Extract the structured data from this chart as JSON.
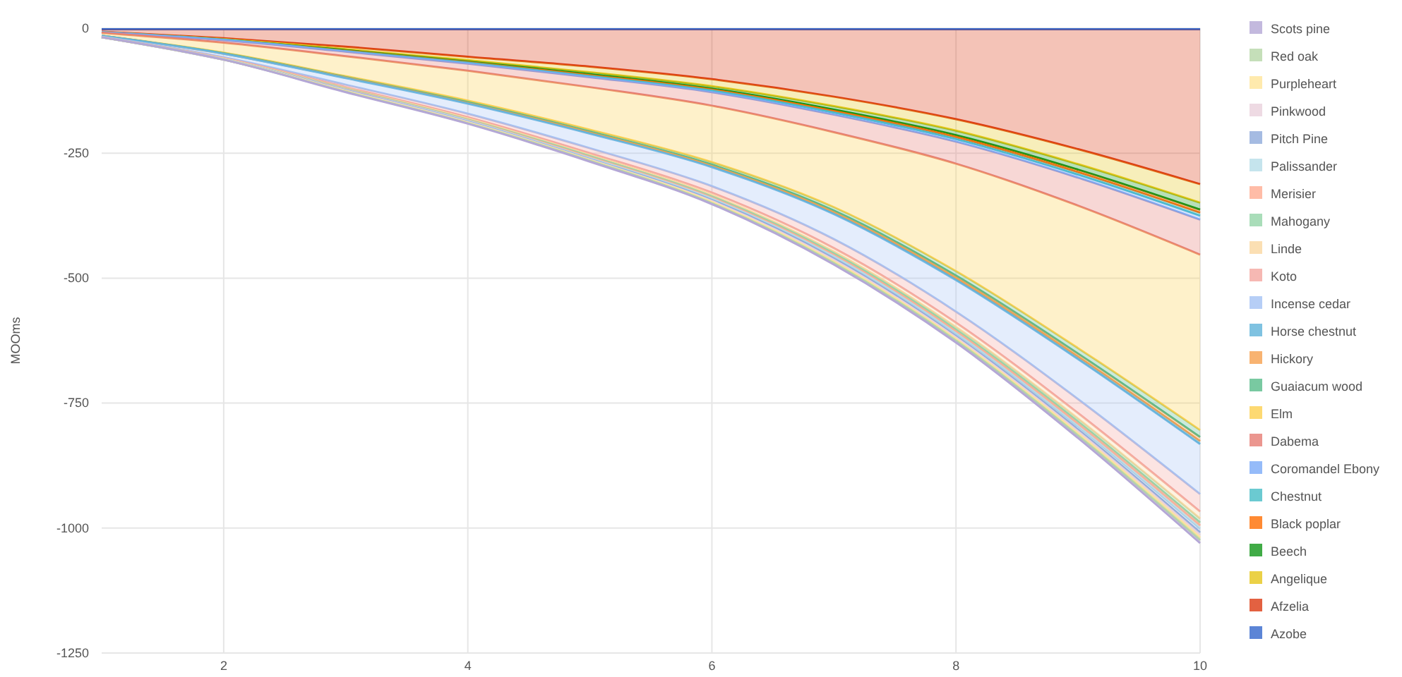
{
  "chart_data": {
    "type": "area",
    "stacked": true,
    "ylabel": "MOOms",
    "x": [
      1,
      2,
      3,
      4,
      5,
      6,
      7,
      8,
      9,
      10
    ],
    "xlim": [
      1,
      10
    ],
    "xticks": [
      2,
      4,
      6,
      8,
      10
    ],
    "ylim": [
      -1250,
      0
    ],
    "yticks": [
      -1250,
      -1000,
      -750,
      -500,
      -250,
      0
    ],
    "grid": true,
    "legend": "right",
    "series": [
      {
        "name": "Azobe",
        "color": "#3366cc",
        "values": [
          -2,
          -2,
          -2,
          -2,
          -2,
          -2,
          -2,
          -2,
          -2,
          -2
        ]
      },
      {
        "name": "Afzelia",
        "color": "#dc3912",
        "values": [
          -5,
          -18,
          -35,
          -55,
          -75,
          -100,
          -135,
          -180,
          -240,
          -310
        ]
      },
      {
        "name": "Angelique",
        "color": "#e6c619",
        "values": [
          -1,
          -2,
          -5,
          -7,
          -11,
          -14,
          -19,
          -23,
          -30,
          -37
        ]
      },
      {
        "name": "Beech",
        "color": "#109618",
        "values": [
          0,
          -1,
          -2,
          -3,
          -4,
          -5,
          -7,
          -9,
          -11,
          -14
        ]
      },
      {
        "name": "Black poplar",
        "color": "#ff6d00",
        "values": [
          0,
          0,
          -1,
          -1,
          -2,
          -2,
          -3,
          -4,
          -5,
          -6
        ]
      },
      {
        "name": "Chestnut",
        "color": "#46bdc6",
        "values": [
          0,
          0,
          -1,
          -1,
          -2,
          -2,
          -3,
          -4,
          -5,
          -6
        ]
      },
      {
        "name": "Coromandel Ebony",
        "color": "#7baaf7",
        "values": [
          0,
          -1,
          -1,
          -2,
          -2,
          -3,
          -4,
          -5,
          -6,
          -8
        ]
      },
      {
        "name": "Dabema",
        "color": "#e67c73",
        "values": [
          -1,
          -5,
          -9,
          -14,
          -20,
          -27,
          -35,
          -44,
          -56,
          -70
        ]
      },
      {
        "name": "Elm",
        "color": "#fcd04f",
        "values": [
          -6,
          -20,
          -40,
          -60,
          -85,
          -113,
          -150,
          -215,
          -285,
          -351
        ]
      },
      {
        "name": "Guaiacum wood",
        "color": "#57bb8a",
        "values": [
          0,
          -1,
          -2,
          -3,
          -4,
          -5,
          -7,
          -9,
          -11,
          -14
        ]
      },
      {
        "name": "Hickory",
        "color": "#f6a04d",
        "values": [
          0,
          -1,
          -1,
          -2,
          -2,
          -3,
          -4,
          -5,
          -6,
          -8
        ]
      },
      {
        "name": "Horse chestnut",
        "color": "#5fb3d9",
        "values": [
          0,
          0,
          -1,
          -1,
          -2,
          -2,
          -3,
          -4,
          -5,
          -6
        ]
      },
      {
        "name": "Incense cedar",
        "color": "#a4c2f4",
        "values": [
          -2,
          -7,
          -13,
          -20,
          -29,
          -38,
          -50,
          -63,
          -80,
          -100
        ]
      },
      {
        "name": "Koto",
        "color": "#f4a6a0",
        "values": [
          -1,
          -2,
          -5,
          -7,
          -10,
          -13,
          -18,
          -22,
          -28,
          -35
        ]
      },
      {
        "name": "Linde",
        "color": "#fad7a0",
        "values": [
          0,
          -1,
          -2,
          -3,
          -4,
          -5,
          -7,
          -9,
          -11,
          -14
        ]
      },
      {
        "name": "Mahogany",
        "color": "#93d5a8",
        "values": [
          0,
          -1,
          -1,
          -2,
          -2,
          -3,
          -4,
          -5,
          -6,
          -8
        ]
      },
      {
        "name": "Merisier",
        "color": "#ffab91",
        "values": [
          0,
          0,
          -1,
          -1,
          -2,
          -2,
          -3,
          -4,
          -5,
          -6
        ]
      },
      {
        "name": "Palissander",
        "color": "#b6dde8",
        "values": [
          0,
          0,
          -1,
          -1,
          -2,
          -2,
          -3,
          -4,
          -5,
          -6
        ]
      },
      {
        "name": "Pitch Pine",
        "color": "#8eaadb",
        "values": [
          0,
          -1,
          -1,
          -2,
          -2,
          -3,
          -4,
          -5,
          -6,
          -8
        ]
      },
      {
        "name": "Pinkwood",
        "color": "#ead1dc",
        "values": [
          0,
          0,
          -1,
          -1,
          -1,
          -2,
          -3,
          -3,
          -4,
          -5
        ]
      },
      {
        "name": "Purpleheart",
        "color": "#ffe599",
        "values": [
          0,
          0,
          -1,
          -1,
          -1,
          -2,
          -3,
          -3,
          -4,
          -5
        ]
      },
      {
        "name": "Red oak",
        "color": "#b6d7a8",
        "values": [
          0,
          0,
          -1,
          -1,
          -1,
          -2,
          -3,
          -3,
          -4,
          -5
        ]
      },
      {
        "name": "Scots pine",
        "color": "#b4a7d6",
        "values": [
          0,
          0,
          -1,
          -1,
          -2,
          -2,
          -3,
          -4,
          -5,
          -6
        ]
      }
    ]
  }
}
